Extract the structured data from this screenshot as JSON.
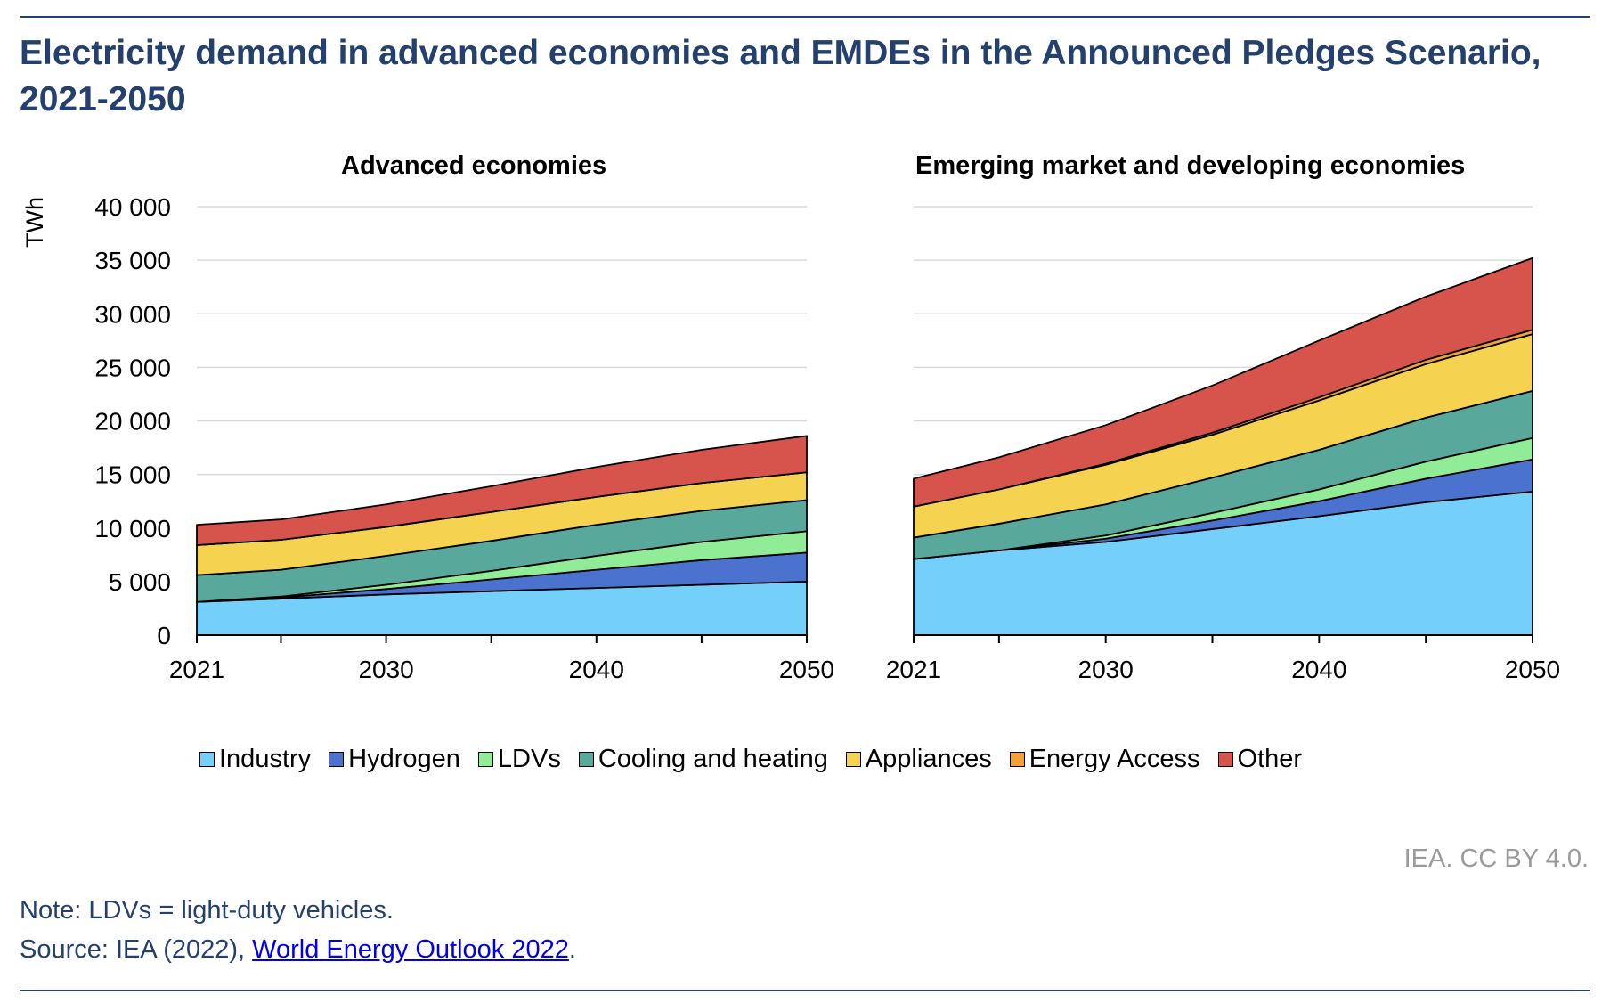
{
  "title": "Electricity demand in advanced economies and EMDEs in the Announced Pledges Scenario, 2021-2050",
  "credit": "IEA. CC BY 4.0.",
  "note": "Note: LDVs = light-duty vehicles.",
  "source": {
    "prefix": "Source: IEA (2022), ",
    "link": "World Energy Outlook 2022",
    "suffix": "."
  },
  "chart_data": [
    {
      "type": "area",
      "stacked": true,
      "title": "Advanced economies",
      "ylabel": "TWh",
      "ylim": [
        0,
        40000
      ],
      "yticks": [
        "0",
        "5 000",
        "10 000",
        "15 000",
        "20 000",
        "25 000",
        "30 000",
        "35 000",
        "40 000"
      ],
      "xticks": [
        "2021",
        "2030",
        "2040",
        "2050"
      ],
      "grid": true,
      "x": [
        2021,
        2025,
        2030,
        2035,
        2040,
        2045,
        2050
      ],
      "series": [
        {
          "name": "Industry",
          "color": "#74cffa",
          "values": [
            3100,
            3400,
            3800,
            4100,
            4400,
            4700,
            5000
          ]
        },
        {
          "name": "Hydrogen",
          "color": "#4a72ce",
          "values": [
            0,
            100,
            500,
            1100,
            1700,
            2300,
            2700
          ]
        },
        {
          "name": "LDVs",
          "color": "#90ec96",
          "values": [
            0,
            100,
            400,
            800,
            1300,
            1700,
            2000
          ]
        },
        {
          "name": "Cooling and heating",
          "color": "#58a99b",
          "values": [
            2500,
            2500,
            2700,
            2800,
            2900,
            2900,
            2900
          ]
        },
        {
          "name": "Appliances",
          "color": "#f6d251",
          "values": [
            2800,
            2800,
            2700,
            2700,
            2600,
            2600,
            2600
          ]
        },
        {
          "name": "Energy Access",
          "color": "#f2a03a",
          "values": [
            0,
            0,
            0,
            0,
            0,
            0,
            0
          ]
        },
        {
          "name": "Other",
          "color": "#d6544b",
          "values": [
            1900,
            1900,
            2100,
            2400,
            2800,
            3100,
            3400
          ]
        }
      ]
    },
    {
      "type": "area",
      "stacked": true,
      "title": "Emerging market and developing economies",
      "ylim": [
        0,
        40000
      ],
      "xticks": [
        "2021",
        "2030",
        "2040",
        "2050"
      ],
      "grid": true,
      "x": [
        2021,
        2025,
        2030,
        2035,
        2040,
        2045,
        2050
      ],
      "series": [
        {
          "name": "Industry",
          "color": "#74cffa",
          "values": [
            7100,
            7900,
            8700,
            9900,
            11100,
            12400,
            13400
          ]
        },
        {
          "name": "Hydrogen",
          "color": "#4a72ce",
          "values": [
            0,
            0,
            300,
            800,
            1400,
            2200,
            3000
          ]
        },
        {
          "name": "LDVs",
          "color": "#90ec96",
          "values": [
            0,
            0,
            300,
            700,
            1100,
            1600,
            2000
          ]
        },
        {
          "name": "Cooling and heating",
          "color": "#58a99b",
          "values": [
            2000,
            2500,
            2900,
            3300,
            3700,
            4100,
            4400
          ]
        },
        {
          "name": "Appliances",
          "color": "#f6d251",
          "values": [
            2900,
            3200,
            3700,
            4000,
            4600,
            5000,
            5300
          ]
        },
        {
          "name": "Energy Access",
          "color": "#f2a03a",
          "values": [
            0,
            0,
            100,
            200,
            300,
            400,
            400
          ]
        },
        {
          "name": "Other",
          "color": "#d6544b",
          "values": [
            2600,
            3000,
            3600,
            4400,
            5300,
            5900,
            6700
          ]
        }
      ]
    }
  ]
}
